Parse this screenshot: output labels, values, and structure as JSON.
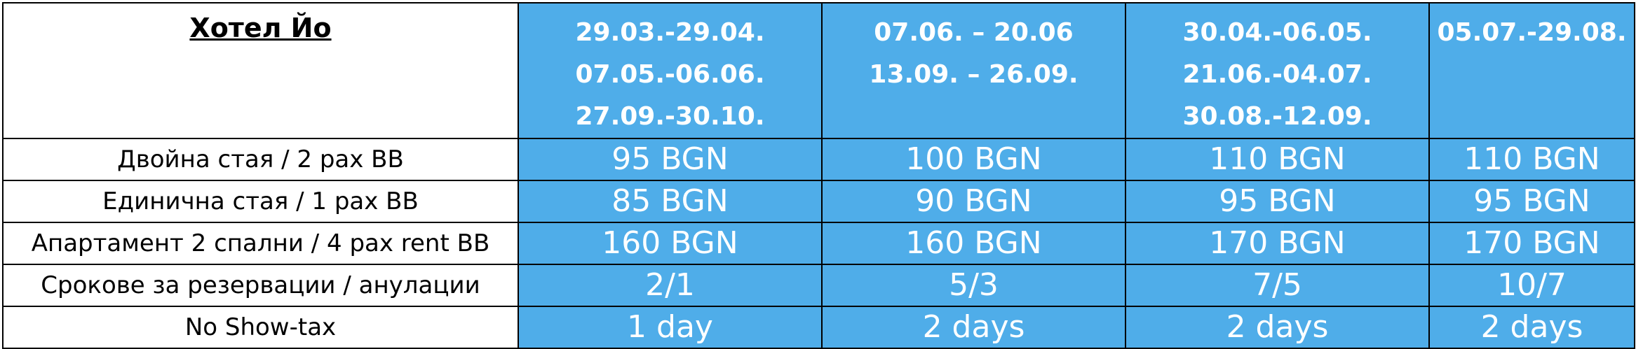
{
  "hotel_name": "Хотел Йо",
  "periods": [
    [
      "29.03.-29.04.",
      "07.05.-06.06.",
      "27.09.-30.10."
    ],
    [
      "07.06. – 20.06",
      "13.09. – 26.09."
    ],
    [
      "30.04.-06.05.",
      "21.06.-04.07.",
      "30.08.-12.09."
    ],
    [
      "05.07.-29.08."
    ]
  ],
  "rows": [
    {
      "label": "Двойна стая / 2 pax BB",
      "values": [
        "95 BGN",
        "100 BGN",
        "110 BGN",
        "110 BGN"
      ]
    },
    {
      "label": "Единична стая / 1 pax BB",
      "values": [
        "85 BGN",
        "90 BGN",
        "95 BGN",
        "95 BGN"
      ]
    },
    {
      "label": "Апартамент 2 спални / 4 pax rent BB",
      "values": [
        "160 BGN",
        "160 BGN",
        "170 BGN",
        "170 BGN"
      ]
    },
    {
      "label": "Срокове за резервации / анулации",
      "values": [
        "2/1",
        "5/3",
        "7/5",
        "10/7"
      ]
    },
    {
      "label": "No Show-tax",
      "values": [
        "1 day",
        "2 days",
        "2 days",
        "2 days"
      ]
    }
  ],
  "colors": {
    "header_bg": "#4fade9",
    "header_text": "#ffffff",
    "border": "#000000"
  }
}
